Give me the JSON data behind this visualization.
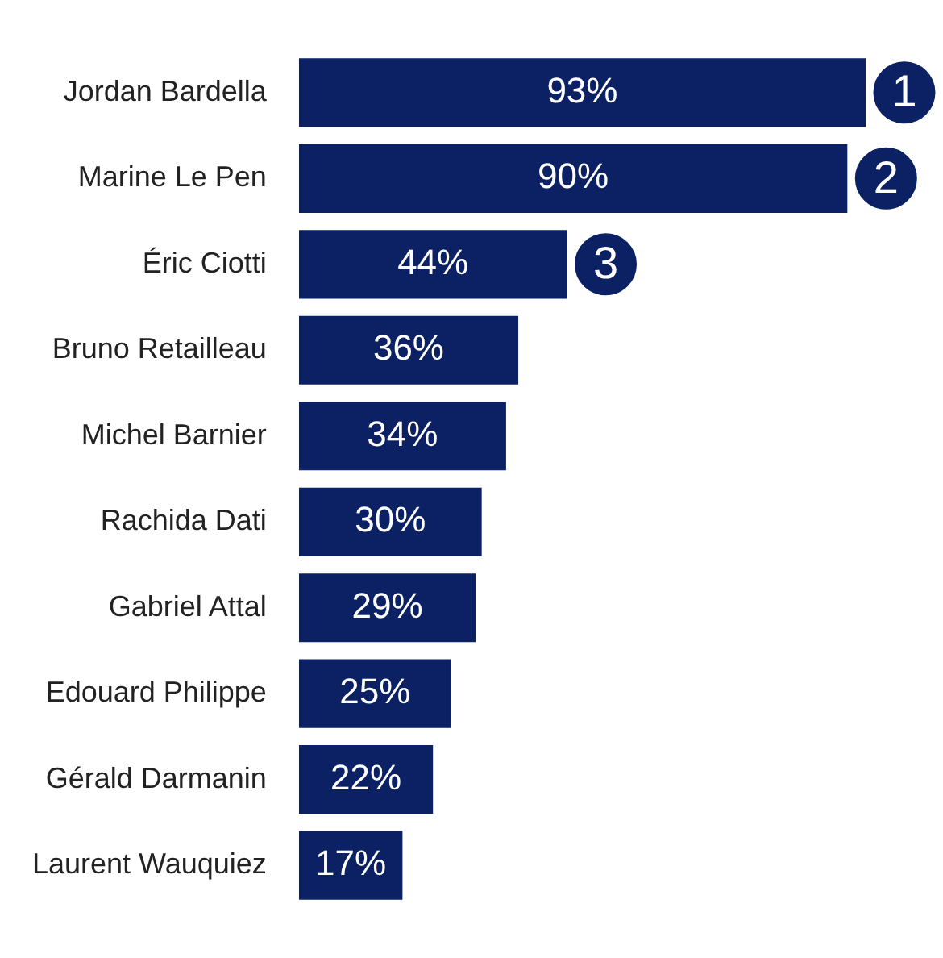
{
  "chart_data": {
    "type": "bar",
    "orientation": "horizontal",
    "categories": [
      "Jordan Bardella",
      "Marine Le Pen",
      "Éric Ciotti",
      "Bruno Retailleau",
      "Michel Barnier",
      "Rachida Dati",
      "Gabriel Attal",
      "Edouard Philippe",
      "Gérald Darmanin",
      "Laurent Wauquiez"
    ],
    "values": [
      93,
      90,
      44,
      36,
      34,
      30,
      29,
      25,
      22,
      17
    ],
    "value_labels": [
      "93%",
      "90%",
      "44%",
      "36%",
      "34%",
      "30%",
      "29%",
      "25%",
      "22%",
      "17%"
    ],
    "color": "#0c2164",
    "annotations": [
      {
        "text": "1",
        "x": 93,
        "y": "Jordan Bardella"
      },
      {
        "text": "2",
        "x": 90,
        "y": "Marine Le Pen"
      },
      {
        "text": "3",
        "x": 44,
        "y": "Éric Ciotti"
      }
    ],
    "grid": false,
    "legend": false
  }
}
